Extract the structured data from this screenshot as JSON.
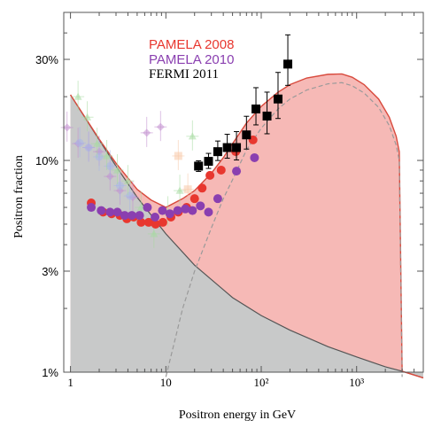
{
  "chart_data": {
    "type": "scatter",
    "title": "",
    "xlabel": "Positron energy in GeV",
    "ylabel": "Positron  fraction",
    "xscale": "log",
    "yscale": "log",
    "xlim": [
      0.85,
      5000
    ],
    "ylim": [
      0.01,
      0.5
    ],
    "x_ticks": [
      {
        "value": 1,
        "label": "1"
      },
      {
        "value": 10,
        "label": "10"
      },
      {
        "value": 100,
        "label": "10²"
      },
      {
        "value": 1000,
        "label": "10³"
      }
    ],
    "y_ticks": [
      {
        "value": 0.01,
        "label": "1%"
      },
      {
        "value": 0.03,
        "label": "3%"
      },
      {
        "value": 0.1,
        "label": "10%"
      },
      {
        "value": 0.3,
        "label": "30%"
      }
    ],
    "legend": {
      "position": "top-center",
      "entries": [
        {
          "label": "PAMELA 2008",
          "color": "#e8372f"
        },
        {
          "label": "PAMELA 2010",
          "color": "#8a3fb0"
        },
        {
          "label": "FERMI 2011",
          "color": "#000000"
        }
      ]
    },
    "series": [
      {
        "name": "PAMELA 2008",
        "marker": "circle",
        "color": "#e8372f",
        "x": [
          1.65,
          2.2,
          2.7,
          3.3,
          3.9,
          4.6,
          5.5,
          6.6,
          7.8,
          9.3,
          11.3,
          13.5,
          16.5,
          20,
          24,
          29,
          38,
          54,
          82
        ],
        "y": [
          0.063,
          0.057,
          0.056,
          0.055,
          0.053,
          0.054,
          0.051,
          0.051,
          0.05,
          0.051,
          0.054,
          0.057,
          0.06,
          0.066,
          0.074,
          0.085,
          0.09,
          0.11,
          0.125
        ]
      },
      {
        "name": "PAMELA 2010",
        "marker": "circle",
        "color": "#8a3fb0",
        "x": [
          1.65,
          2.1,
          2.6,
          3.1,
          3.7,
          4.4,
          5.3,
          6.4,
          7.7,
          9.2,
          11,
          13.3,
          16,
          19,
          23,
          28,
          35,
          55,
          85
        ],
        "y": [
          0.06,
          0.058,
          0.057,
          0.057,
          0.055,
          0.055,
          0.055,
          0.06,
          0.054,
          0.058,
          0.056,
          0.058,
          0.059,
          0.058,
          0.061,
          0.057,
          0.066,
          0.089,
          0.103
        ]
      },
      {
        "name": "FERMI 2011",
        "marker": "square",
        "color": "#000000",
        "x": [
          22,
          28,
          35,
          44,
          55,
          70,
          88,
          115,
          150,
          190
        ],
        "y": [
          0.094,
          0.099,
          0.11,
          0.115,
          0.115,
          0.132,
          0.175,
          0.162,
          0.195,
          0.285
        ]
      },
      {
        "name": "",
        "marker": "diamond",
        "color": "#c28fd0",
        "x": [
          0.92,
          1.2,
          1.55,
          2.0,
          2.6,
          3.3,
          4.5,
          6.3,
          8.8
        ],
        "y": [
          0.143,
          0.12,
          0.115,
          0.11,
          0.084,
          0.072,
          0.067,
          0.135,
          0.144
        ]
      },
      {
        "name": "",
        "marker": "circle",
        "color": "#a9b6e8",
        "x": [
          1.25,
          1.55,
          2.0,
          2.6,
          3.3,
          4.2
        ],
        "y": [
          0.121,
          0.115,
          0.104,
          0.094,
          0.076,
          0.068
        ]
      },
      {
        "name": "",
        "marker": "triangle",
        "color": "#a6dba0",
        "x": [
          1.2,
          1.5,
          1.9,
          2.4,
          3.1,
          4.0,
          5.5,
          7.5,
          10.5,
          14,
          19
        ],
        "y": [
          0.2,
          0.16,
          0.12,
          0.105,
          0.09,
          0.08,
          0.06,
          0.045,
          0.057,
          0.072,
          0.13
        ]
      },
      {
        "name": "",
        "marker": "square",
        "color": "#f7c8a8",
        "x": [
          13.5,
          17
        ],
        "y": [
          0.105,
          0.073
        ]
      }
    ],
    "background_band": {
      "x": [
        1,
        2,
        3,
        5,
        10,
        20,
        50,
        100,
        200,
        500,
        1000,
        2000,
        3000,
        5000
      ],
      "y": [
        0.204,
        0.125,
        0.094,
        0.067,
        0.045,
        0.032,
        0.0225,
        0.0185,
        0.0158,
        0.0132,
        0.0118,
        0.0106,
        0.0101,
        0.0094
      ],
      "color": "#c8c9c9"
    },
    "model_total": {
      "x": [
        1,
        2,
        3,
        5,
        7,
        10,
        15,
        20,
        30,
        40,
        50,
        70,
        100,
        150,
        200,
        300,
        500,
        700,
        900,
        1200,
        1700,
        2200,
        2600,
        2800,
        3000,
        5000
      ],
      "y": [
        0.204,
        0.126,
        0.097,
        0.073,
        0.065,
        0.06,
        0.066,
        0.072,
        0.087,
        0.103,
        0.12,
        0.15,
        0.18,
        0.21,
        0.228,
        0.245,
        0.255,
        0.256,
        0.247,
        0.228,
        0.195,
        0.16,
        0.13,
        0.11,
        0.0101,
        0.0094
      ],
      "fill": "#f6b9b6",
      "stroke": "#d84a3d"
    },
    "model_dm": {
      "x": [
        10,
        15,
        20,
        30,
        40,
        50,
        70,
        100,
        150,
        200,
        300,
        500,
        700,
        900,
        1200,
        1700,
        2200,
        2600,
        2800,
        3000
      ],
      "y": [
        0.0095,
        0.02,
        0.03,
        0.048,
        0.066,
        0.081,
        0.112,
        0.142,
        0.175,
        0.195,
        0.215,
        0.23,
        0.233,
        0.225,
        0.208,
        0.178,
        0.146,
        0.118,
        0.1,
        0.0095
      ],
      "color": "#9a9a9a",
      "style": "dashed"
    }
  }
}
